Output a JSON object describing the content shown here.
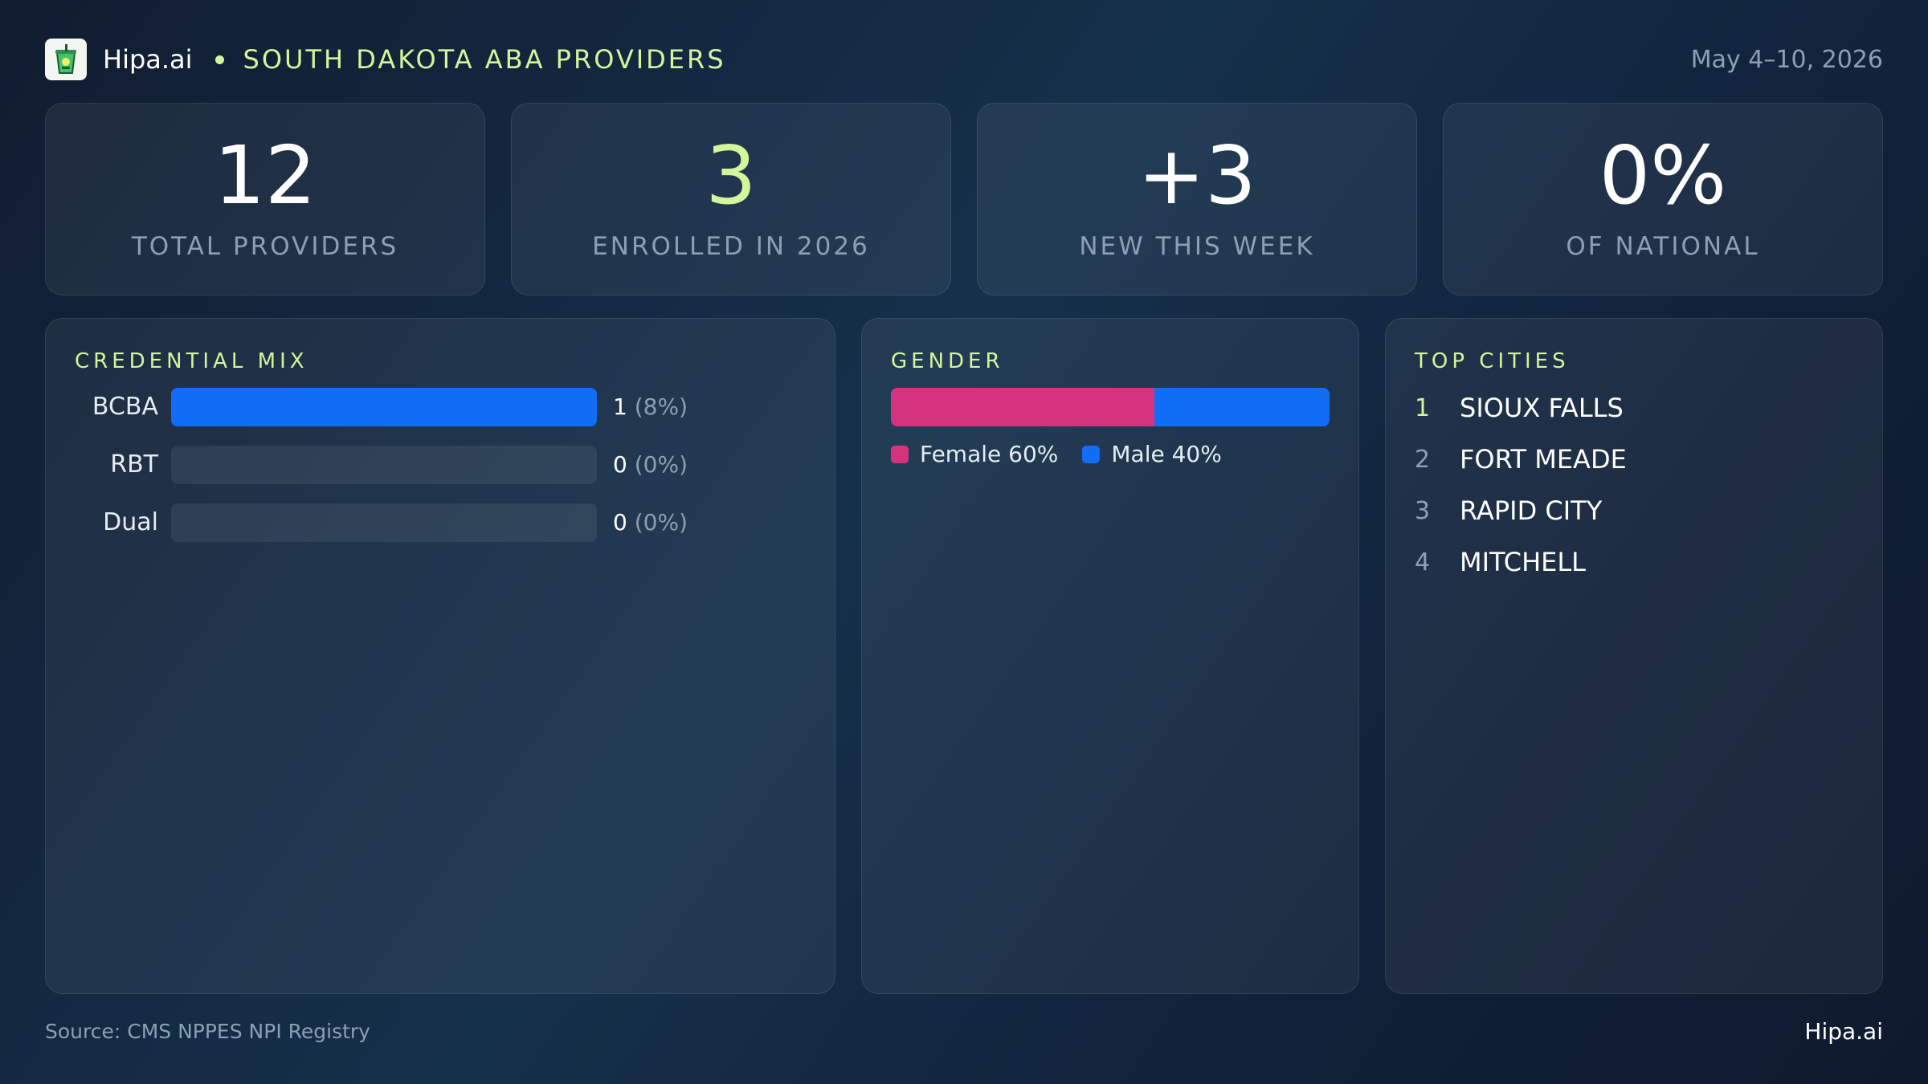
{
  "header": {
    "logo_icon": "cup-icon",
    "brand": "Hipa.ai",
    "region": "SOUTH DAKOTA ABA PROVIDERS",
    "date_range": "May 4–10, 2026"
  },
  "stats": [
    {
      "value": "12",
      "label": "TOTAL PROVIDERS"
    },
    {
      "value": "3",
      "label": "ENROLLED IN 2026"
    },
    {
      "value": "+3",
      "label": "NEW THIS WEEK"
    },
    {
      "value": "0%",
      "label": "OF NATIONAL"
    }
  ],
  "credential_mix": {
    "title": "CREDENTIAL MIX",
    "rows": [
      {
        "label": "BCBA",
        "count": "1",
        "pct": "(8%)",
        "fill_fraction": 1.0
      },
      {
        "label": "RBT",
        "count": "0",
        "pct": "(0%)",
        "fill_fraction": 0.0
      },
      {
        "label": "Dual",
        "count": "0",
        "pct": "(0%)",
        "fill_fraction": 0.0
      }
    ]
  },
  "gender": {
    "title": "GENDER",
    "female_label": "Female 60%",
    "male_label": "Male 40%",
    "female_share": 0.6,
    "male_share": 0.4,
    "female_color": "#d6337f",
    "male_color": "#116cf6"
  },
  "top_cities": {
    "title": "TOP CITIES",
    "items": [
      {
        "rank": "1",
        "name": "SIOUX FALLS"
      },
      {
        "rank": "2",
        "name": "FORT MEADE"
      },
      {
        "rank": "3",
        "name": "RAPID CITY"
      },
      {
        "rank": "4",
        "name": "MITCHELL"
      }
    ]
  },
  "footer": {
    "source": "Source: CMS NPPES NPI Registry",
    "brand": "Hipa.ai"
  },
  "colors": {
    "accent": "#d4f59a",
    "muted": "#8d9fb4",
    "bar_blue": "#116cf6"
  }
}
